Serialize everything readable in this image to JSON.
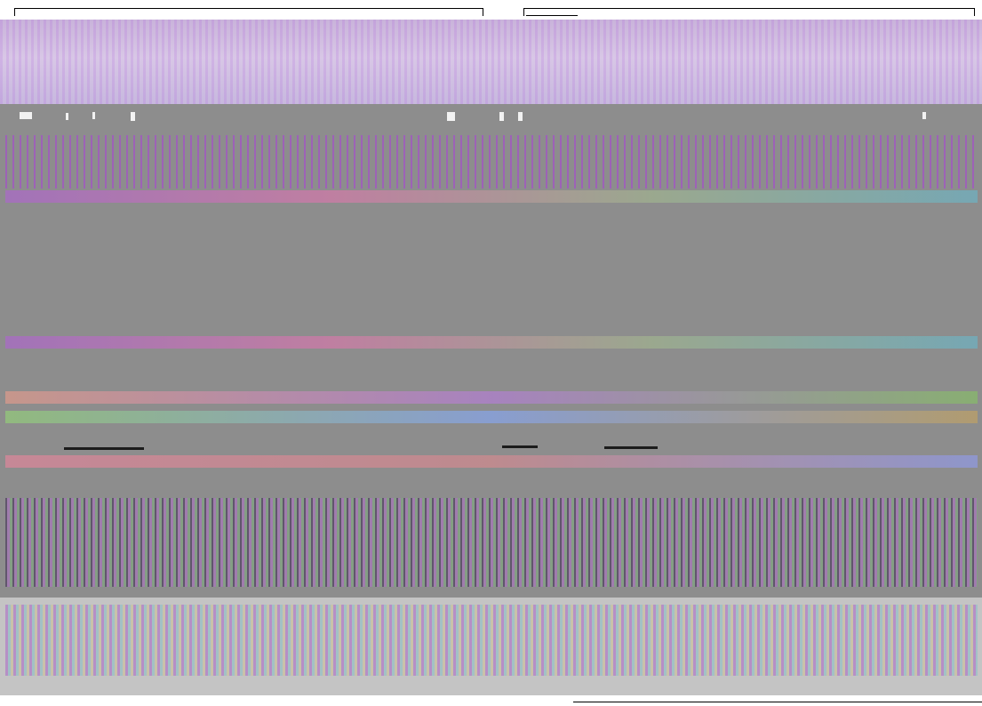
{
  "screen": {
    "description_free": true
  },
  "colors": {
    "background": "#ffffff",
    "gray_region": "#8d8d8d",
    "bottom_region": "#c4c4c4",
    "accent_purple": "#a96ac7"
  }
}
